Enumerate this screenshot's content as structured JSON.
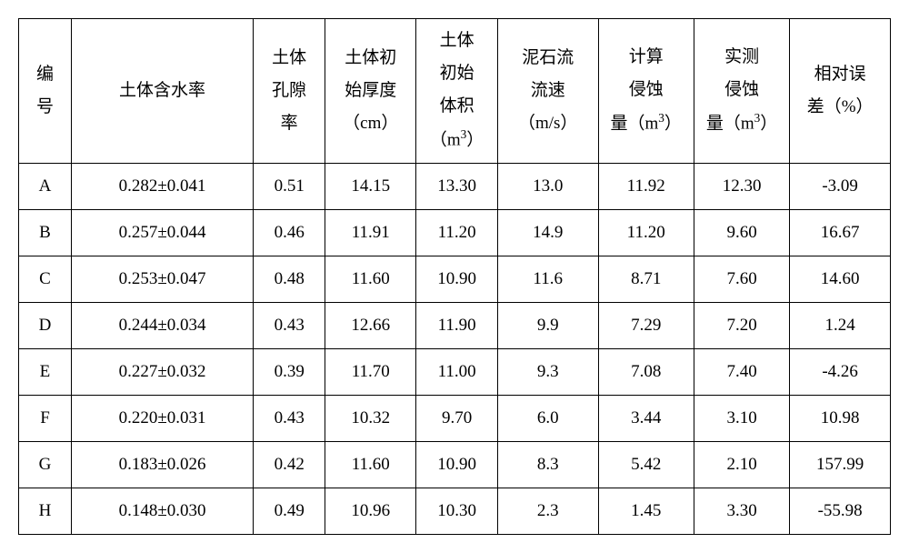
{
  "table": {
    "columns": [
      {
        "key": "id",
        "label": "编<br>号"
      },
      {
        "key": "water_content",
        "label": "土体含水率"
      },
      {
        "key": "porosity",
        "label": "土体<br>孔隙<br>率"
      },
      {
        "key": "thickness",
        "label": "土体初<br>始厚度<br>（cm）"
      },
      {
        "key": "volume",
        "label": "土体<br>初始<br>体积<br>（m<sup>3</sup>）"
      },
      {
        "key": "velocity",
        "label": "泥石流<br>流速<br>（m/s）"
      },
      {
        "key": "calc_erosion",
        "label": "计算<br>侵蚀<br>量（m<sup>3</sup>）"
      },
      {
        "key": "meas_erosion",
        "label": "实测<br>侵蚀<br>量（m<sup>3</sup>）"
      },
      {
        "key": "rel_error",
        "label": "相对误<br>差（%）"
      }
    ],
    "rows": [
      {
        "id": "A",
        "water_content": "0.282±0.041",
        "porosity": "0.51",
        "thickness": "14.15",
        "volume": "13.30",
        "velocity": "13.0",
        "calc_erosion": "11.92",
        "meas_erosion": "12.30",
        "rel_error": "-3.09"
      },
      {
        "id": "B",
        "water_content": "0.257±0.044",
        "porosity": "0.46",
        "thickness": "11.91",
        "volume": "11.20",
        "velocity": "14.9",
        "calc_erosion": "11.20",
        "meas_erosion": "9.60",
        "rel_error": "16.67"
      },
      {
        "id": "C",
        "water_content": "0.253±0.047",
        "porosity": "0.48",
        "thickness": "11.60",
        "volume": "10.90",
        "velocity": "11.6",
        "calc_erosion": "8.71",
        "meas_erosion": "7.60",
        "rel_error": "14.60"
      },
      {
        "id": "D",
        "water_content": "0.244±0.034",
        "porosity": "0.43",
        "thickness": "12.66",
        "volume": "11.90",
        "velocity": "9.9",
        "calc_erosion": "7.29",
        "meas_erosion": "7.20",
        "rel_error": "1.24"
      },
      {
        "id": "E",
        "water_content": "0.227±0.032",
        "porosity": "0.39",
        "thickness": "11.70",
        "volume": "11.00",
        "velocity": "9.3",
        "calc_erosion": "7.08",
        "meas_erosion": "7.40",
        "rel_error": "-4.26"
      },
      {
        "id": "F",
        "water_content": "0.220±0.031",
        "porosity": "0.43",
        "thickness": "10.32",
        "volume": "9.70",
        "velocity": "6.0",
        "calc_erosion": "3.44",
        "meas_erosion": "3.10",
        "rel_error": "10.98"
      },
      {
        "id": "G",
        "water_content": "0.183±0.026",
        "porosity": "0.42",
        "thickness": "11.60",
        "volume": "10.90",
        "velocity": "8.3",
        "calc_erosion": "5.42",
        "meas_erosion": "2.10",
        "rel_error": "157.99"
      },
      {
        "id": "H",
        "water_content": "0.148±0.030",
        "porosity": "0.49",
        "thickness": "10.96",
        "volume": "10.30",
        "velocity": "2.3",
        "calc_erosion": "1.45",
        "meas_erosion": "3.30",
        "rel_error": "-55.98"
      }
    ],
    "col_classes": [
      "col-id",
      "col-wc",
      "col-por",
      "col-thk",
      "col-vol",
      "col-vel",
      "col-calc",
      "col-meas",
      "col-err"
    ]
  }
}
